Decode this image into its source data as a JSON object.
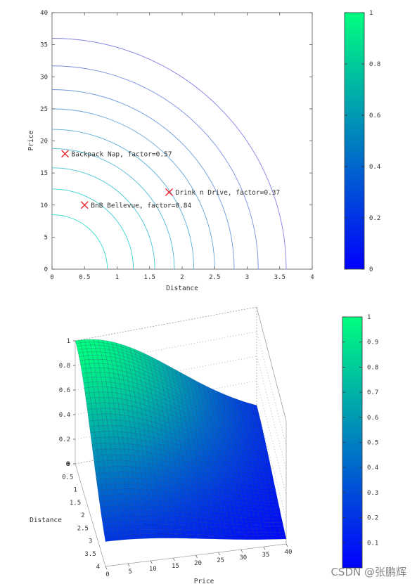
{
  "chart_data": [
    {
      "type": "contour",
      "xlabel": "Distance",
      "ylabel": "Price",
      "xlim": [
        0,
        4
      ],
      "ylim": [
        0,
        40
      ],
      "x_ticks": [
        "0",
        "0.5",
        "1",
        "1.5",
        "2",
        "2.5",
        "3",
        "3.5",
        "4"
      ],
      "y_ticks": [
        "0",
        "5",
        "10",
        "15",
        "20",
        "25",
        "30",
        "35",
        "40"
      ],
      "contour_levels": [
        0.9,
        0.8,
        0.7,
        0.6,
        0.5,
        0.4,
        0.3,
        0.2,
        0.1
      ],
      "contour_radii_distance": [
        0.85,
        1.25,
        1.58,
        1.88,
        2.18,
        2.5,
        2.8,
        3.17,
        3.6
      ],
      "points": [
        {
          "label": "Backpack Nap, factor=0.57",
          "x": 0.2,
          "y": 18
        },
        {
          "label": "Drink n Drive, factor=0.37",
          "x": 1.8,
          "y": 12
        },
        {
          "label": "BnB Bellevue, factor=0.84",
          "x": 0.5,
          "y": 10
        }
      ],
      "colorbar": {
        "min": 0,
        "max": 1,
        "ticks": [
          "0",
          "0.2",
          "0.4",
          "0.6",
          "0.8",
          "1"
        ]
      },
      "colors": {
        "low": "#0000ff",
        "high": "#00ff80",
        "marker": "#e8202a"
      }
    },
    {
      "type": "surface",
      "xlabel": "Price",
      "ylabel": "Distance",
      "xlim": [
        0,
        40
      ],
      "ylim": [
        0,
        4
      ],
      "zlim": [
        0,
        1
      ],
      "x_ticks": [
        "0",
        "5",
        "10",
        "15",
        "20",
        "25",
        "30",
        "35",
        "40"
      ],
      "y_ticks": [
        "0",
        "0.5",
        "1",
        "1.5",
        "2",
        "2.5",
        "3",
        "3.5",
        "4"
      ],
      "z_ticks": [
        "0",
        "0.2",
        "0.4",
        "0.6",
        "0.8",
        "1"
      ],
      "colorbar": {
        "min": 0,
        "max": 1,
        "ticks": [
          "0.1",
          "0.2",
          "0.3",
          "0.4",
          "0.5",
          "0.6",
          "0.7",
          "0.8",
          "0.9",
          "1"
        ]
      }
    }
  ],
  "watermark": "CSDN @张鹏辉"
}
